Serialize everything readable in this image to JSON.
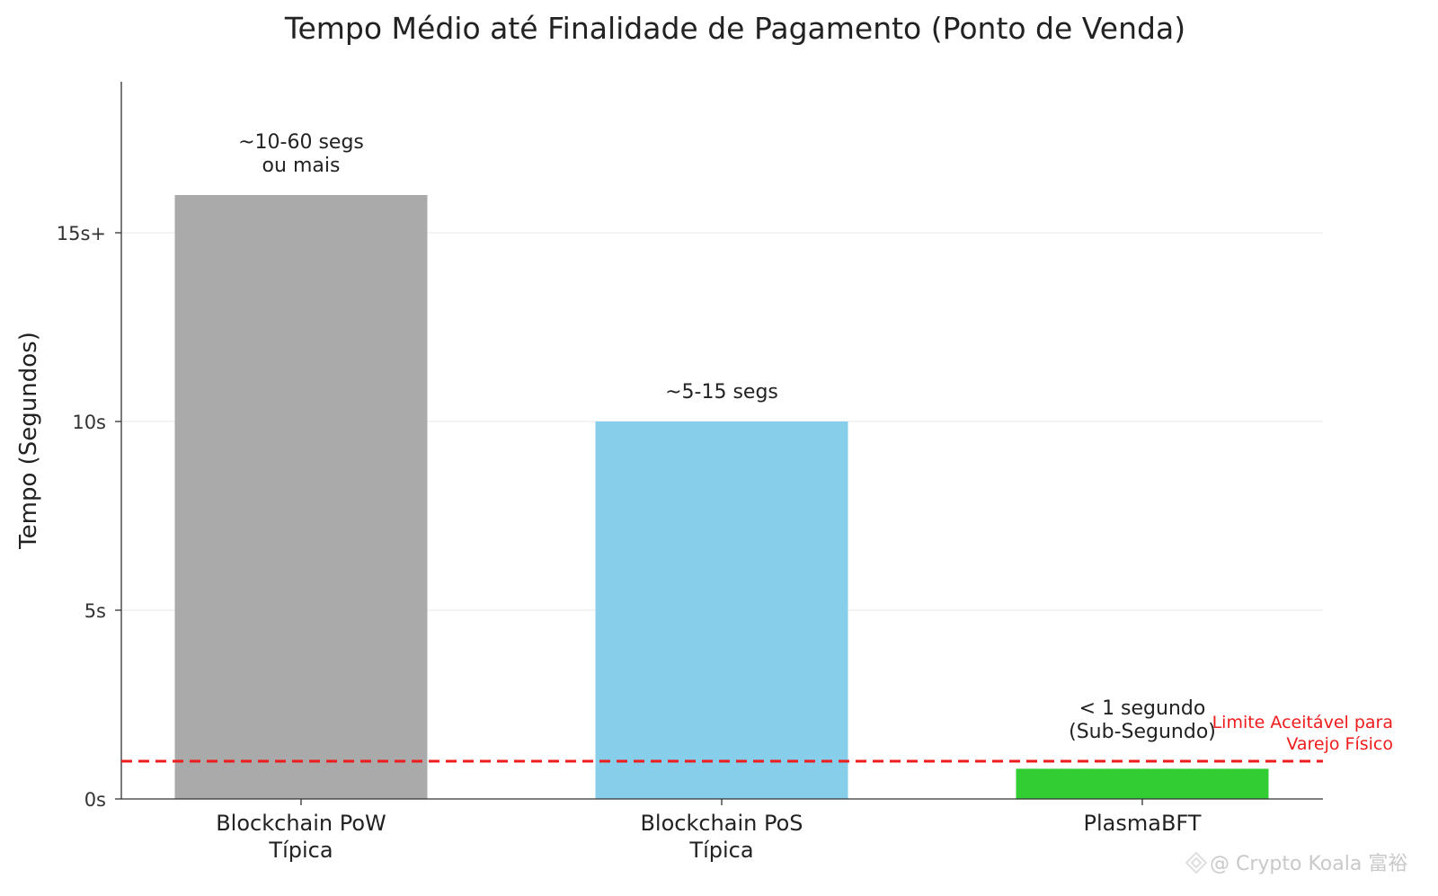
{
  "chart_data": {
    "type": "bar",
    "title": "Tempo Médio até Finalidade de Pagamento (Ponto de Venda)",
    "xlabel": "",
    "ylabel": "Tempo (Segundos)",
    "ylim": [
      0,
      19
    ],
    "grid": "horizontal",
    "yticks": [
      {
        "value": 0,
        "label": "0s"
      },
      {
        "value": 5,
        "label": "5s"
      },
      {
        "value": 10,
        "label": "10s"
      },
      {
        "value": 15,
        "label": "15s+"
      }
    ],
    "categories": [
      [
        "Blockchain PoW",
        "Típica"
      ],
      [
        "Blockchain PoS",
        "Típica"
      ],
      [
        "PlasmaBFT"
      ]
    ],
    "values": [
      16,
      10,
      0.8
    ],
    "colors": [
      "#aaaaaa",
      "#87ceeb",
      "#32cd32"
    ],
    "data_labels": [
      [
        "~10-60 segs",
        "ou mais"
      ],
      [
        "~5-15 segs"
      ],
      [
        "< 1 segundo",
        "(Sub-Segundo)"
      ]
    ],
    "reference_line": {
      "value": 1,
      "color": "#ee1c1c",
      "style": "dashed",
      "label": [
        "Limite Aceitável para",
        "Varejo Físico"
      ]
    }
  },
  "watermark": "@ Crypto Koala 富裕"
}
